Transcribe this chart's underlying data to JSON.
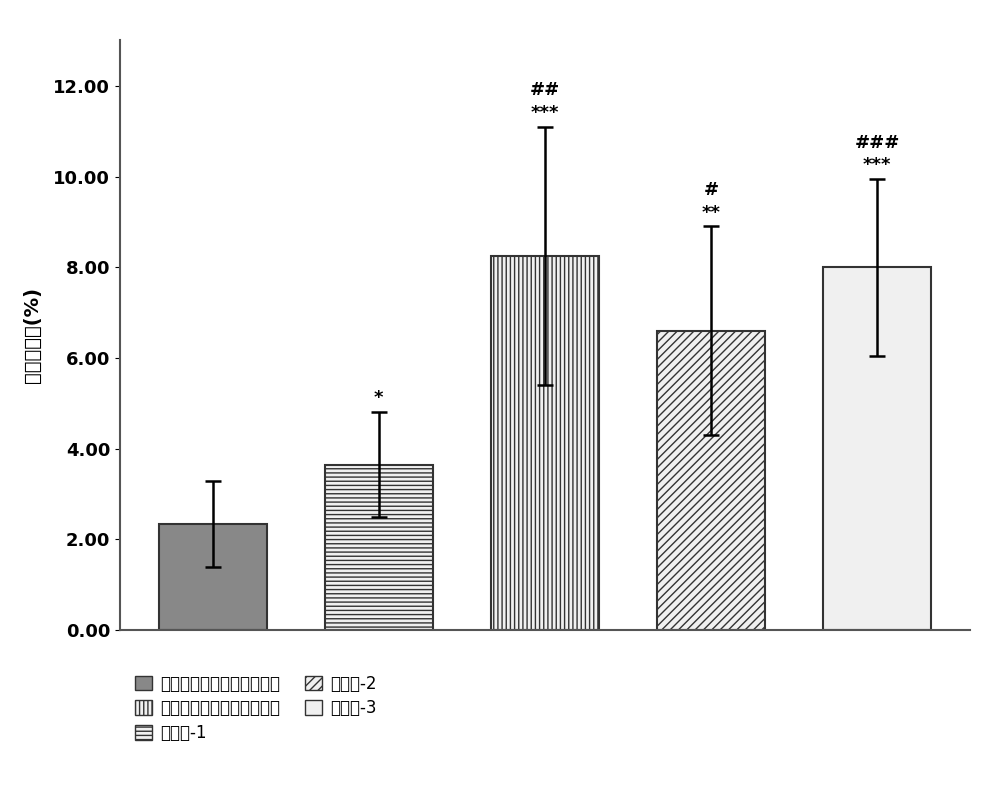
{
  "values": [
    2.35,
    3.65,
    8.25,
    6.6,
    8.0
  ],
  "errors": [
    0.95,
    1.15,
    2.85,
    2.3,
    1.95
  ],
  "ylabel": "肿瘾重量比(%)",
  "ylim": [
    0,
    13.0
  ],
  "ytick_labels": [
    "0.00",
    "2.00",
    "4.00",
    "6.00",
    "8.00",
    "10.00",
    "12.00"
  ],
  "ytick_vals": [
    0.0,
    2.0,
    4.0,
    6.0,
    8.0,
    10.0,
    12.0
  ],
  "bar_face_colors": [
    "#888888",
    "#f0f0f0",
    "#f0f0f0",
    "#f0f0f0",
    "#f0f0f0"
  ],
  "bar_edge_colors": [
    "#333333",
    "#333333",
    "#333333",
    "#333333",
    "#333333"
  ],
  "hatches": [
    null,
    "----",
    "||||",
    "////",
    "~~~~"
  ],
  "legend_labels_col1": [
    "光动力治疗组（高浓度组）",
    "对照组-1",
    "对照组-3"
  ],
  "legend_labels_col2": [
    "光动力治疗组（低浓度组）",
    "对照组-2"
  ],
  "annotation_fontsize": 13,
  "label_fontsize": 14,
  "tick_fontsize": 13,
  "legend_fontsize": 12,
  "bar_width": 0.65,
  "fig_width": 10.0,
  "fig_height": 8.08
}
